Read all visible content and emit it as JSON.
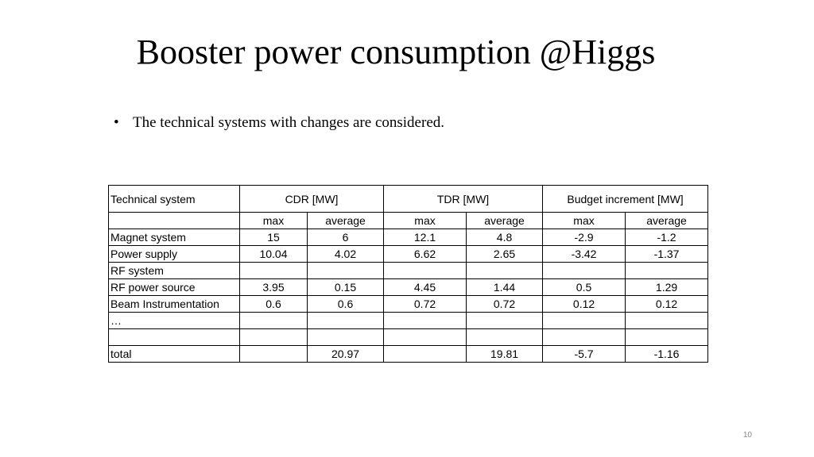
{
  "slide": {
    "title": "Booster power consumption @Higgs",
    "bullets": [
      "The technical systems with changes are considered."
    ],
    "page_number": "10"
  },
  "table": {
    "header": {
      "system_label": "Technical system",
      "groups": [
        "CDR  [MW]",
        "TDR  [MW]",
        "Budget increment [MW]"
      ]
    },
    "subheaders": [
      "max",
      "average",
      "max",
      "average",
      "max",
      "average"
    ],
    "rows": [
      {
        "system": "Magnet system",
        "cells": [
          "15",
          "6",
          "12.1",
          "4.8",
          "-2.9",
          "-1.2"
        ]
      },
      {
        "system": "Power supply",
        "cells": [
          "10.04",
          "4.02",
          "6.62",
          "2.65",
          "-3.42",
          "-1.37"
        ]
      },
      {
        "system": "RF system",
        "cells": [
          "",
          "",
          "",
          "",
          "",
          ""
        ]
      },
      {
        "system": "RF power source",
        "cells": [
          "3.95",
          "0.15",
          "4.45",
          "1.44",
          "0.5",
          "1.29"
        ]
      },
      {
        "system": "Beam Instrumentation",
        "cells": [
          "0.6",
          "0.6",
          "0.72",
          "0.72",
          "0.12",
          "0.12"
        ]
      },
      {
        "system": "…",
        "cells": [
          "",
          "",
          "",
          "",
          "",
          ""
        ]
      },
      {
        "system": "",
        "cells": [
          "",
          "",
          "",
          "",
          "",
          ""
        ]
      },
      {
        "system": "total",
        "cells": [
          "",
          "20.97",
          "",
          "19.81",
          "-5.7",
          "-1.16"
        ]
      }
    ]
  }
}
